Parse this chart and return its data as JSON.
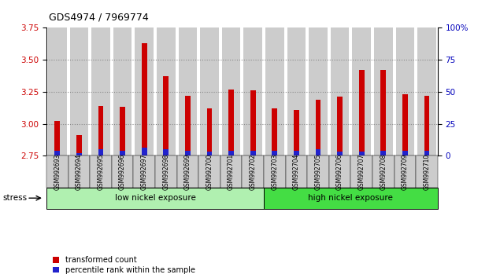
{
  "title": "GDS4974 / 7969774",
  "samples": [
    "GSM992693",
    "GSM992694",
    "GSM992695",
    "GSM992696",
    "GSM992697",
    "GSM992698",
    "GSM992699",
    "GSM992700",
    "GSM992701",
    "GSM992702",
    "GSM992703",
    "GSM992704",
    "GSM992705",
    "GSM992706",
    "GSM992707",
    "GSM992708",
    "GSM992709",
    "GSM992710"
  ],
  "transformed_count": [
    3.02,
    2.91,
    3.14,
    3.13,
    3.63,
    3.37,
    3.22,
    3.12,
    3.27,
    3.26,
    3.12,
    3.11,
    3.19,
    3.21,
    3.42,
    3.42,
    3.23,
    3.22
  ],
  "percentile_rank_pct": [
    4.0,
    2.0,
    5.0,
    4.0,
    6.0,
    5.0,
    4.0,
    3.0,
    4.0,
    4.0,
    4.0,
    4.0,
    5.0,
    3.0,
    3.0,
    4.0,
    4.0,
    4.0
  ],
  "ylim_left": [
    2.75,
    3.75
  ],
  "ylim_right": [
    0,
    100
  ],
  "yticks_left": [
    2.75,
    3.0,
    3.25,
    3.5,
    3.75
  ],
  "yticks_right": [
    0,
    25,
    50,
    75,
    100
  ],
  "bar_color_red": "#cc0000",
  "bar_color_blue": "#2222cc",
  "low_nickel_range": [
    0,
    9
  ],
  "high_nickel_range": [
    10,
    17
  ],
  "group_label_low": "low nickel exposure",
  "group_label_high": "high nickel exposure",
  "group_color_low": "#b0f0b0",
  "group_color_high": "#44dd44",
  "stress_label": "stress",
  "legend_red": "transformed count",
  "legend_blue": "percentile rank within the sample",
  "bar_bg_color": "#cccccc",
  "left_axis_color": "#cc0000",
  "right_axis_color": "#0000bb",
  "dotted_color": "#888888"
}
